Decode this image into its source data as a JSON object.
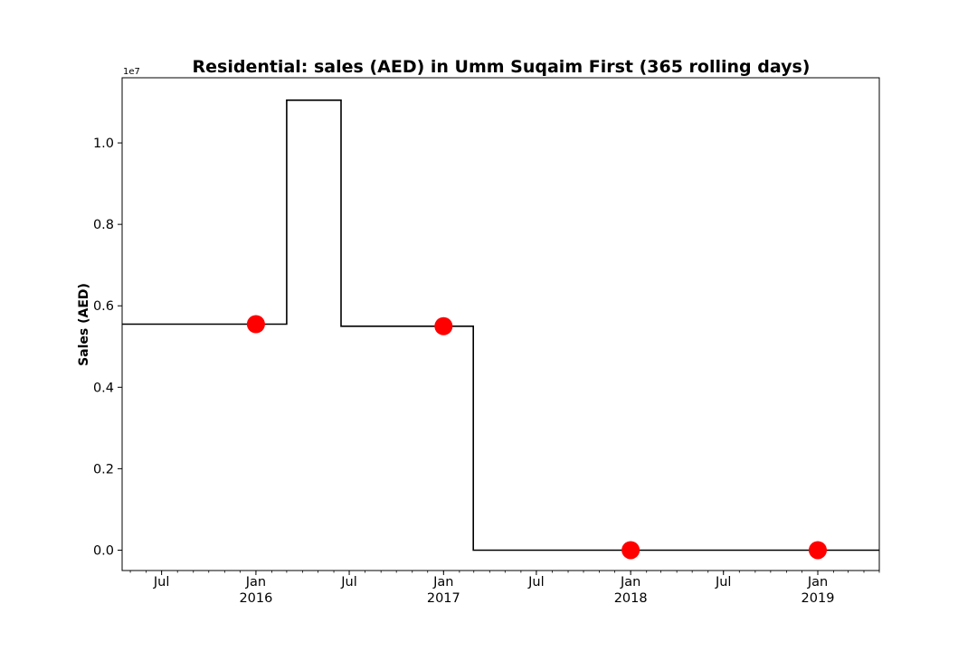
{
  "chart_data": {
    "type": "line",
    "title": "Residential: sales (AED) in Umm Suqaim First (365 rolling days)",
    "xlabel": "",
    "ylabel": "Sales (AED)",
    "y_scale_note": "1e7",
    "x_range": [
      "2015-04-15",
      "2019-05-01"
    ],
    "ylim": [
      -0.05,
      1.16
    ],
    "y_unit": "1e7 AED",
    "grid": false,
    "legend": "none",
    "line_color": "#000000",
    "marker_color": "#ff0000",
    "step_series": {
      "name": "",
      "x": [
        "2015-04-15",
        "2016-03-01",
        "2016-03-01",
        "2016-06-15",
        "2016-06-15",
        "2017-02-28",
        "2017-02-28",
        "2019-05-01"
      ],
      "y": [
        0.555,
        0.555,
        1.105,
        1.105,
        0.55,
        0.55,
        0.0,
        0.0
      ]
    },
    "markers": {
      "name": "",
      "x": [
        "2016-01-01",
        "2017-01-01",
        "2018-01-01",
        "2019-01-01"
      ],
      "y": [
        0.555,
        0.55,
        0.0,
        0.0
      ]
    },
    "y_ticks": [
      0.0,
      0.2,
      0.4,
      0.6,
      0.8,
      1.0
    ],
    "y_tick_labels": [
      "0.0",
      "0.2",
      "0.4",
      "0.6",
      "0.8",
      "1.0"
    ],
    "x_ticks": [
      {
        "date": "2015-07-01",
        "label": "Jul",
        "sub": ""
      },
      {
        "date": "2016-01-01",
        "label": "Jan",
        "sub": "2016"
      },
      {
        "date": "2016-07-01",
        "label": "Jul",
        "sub": ""
      },
      {
        "date": "2017-01-01",
        "label": "Jan",
        "sub": "2017"
      },
      {
        "date": "2017-07-01",
        "label": "Jul",
        "sub": ""
      },
      {
        "date": "2018-01-01",
        "label": "Jan",
        "sub": "2018"
      },
      {
        "date": "2018-07-01",
        "label": "Jul",
        "sub": ""
      },
      {
        "date": "2019-01-01",
        "label": "Jan",
        "sub": "2019"
      }
    ]
  }
}
